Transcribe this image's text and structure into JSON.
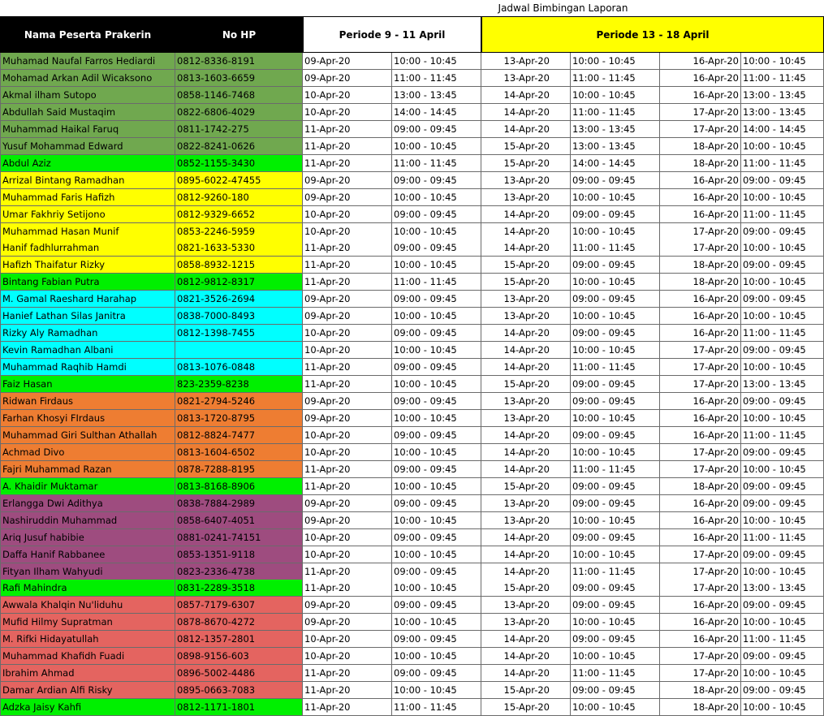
{
  "title": "Jadwal Bimbingan Laporan",
  "headers": {
    "name": "Nama Peserta Prakerin",
    "hp": "No HP",
    "period1": "Periode 9 - 11 April",
    "period2": "Periode 13 - 18 April"
  },
  "colors": {
    "olive": "#70a84f",
    "green": "#00f000",
    "yellow": "#ffff00",
    "cyan": "#00ffff",
    "orange": "#ee7d32",
    "purple": "#9e4c7f",
    "red": "#e46460"
  },
  "rows": [
    {
      "name": "Muhamad Naufal Farros Hediardi",
      "hp": "0812-8336-8191",
      "d1": "09-Apr-20",
      "t1": "10:00 - 10:45",
      "d2": "13-Apr-20",
      "t2": "10:00 - 10:45",
      "d3": "16-Apr-20",
      "t3": "10:00 - 10:45",
      "color": "olive"
    },
    {
      "name": "Mohamad Arkan Adil Wicaksono",
      "hp": "0813-1603-6659",
      "d1": "09-Apr-20",
      "t1": "11:00 - 11:45",
      "d2": "13-Apr-20",
      "t2": "11:00 - 11:45",
      "d3": "16-Apr-20",
      "t3": "11:00 - 11:45",
      "color": "olive"
    },
    {
      "name": "Akmal ilham Sutopo",
      "hp": "0858-1146-7468",
      "d1": "10-Apr-20",
      "t1": "13:00 - 13:45",
      "d2": "14-Apr-20",
      "t2": "10:00 - 10:45",
      "d3": "16-Apr-20",
      "t3": "13:00 - 13:45",
      "color": "olive"
    },
    {
      "name": "Abdullah Said Mustaqim",
      "hp": "0822-6806-4029",
      "d1": "10-Apr-20",
      "t1": "14:00 - 14:45",
      "d2": "14-Apr-20",
      "t2": "11:00 - 11:45",
      "d3": "17-Apr-20",
      "t3": "13:00 - 13:45",
      "color": "olive"
    },
    {
      "name": "Muhammad Haikal Faruq",
      "hp": "0811-1742-275",
      "d1": "11-Apr-20",
      "t1": "09:00 - 09:45",
      "d2": "14-Apr-20",
      "t2": "13:00 - 13:45",
      "d3": "17-Apr-20",
      "t3": "14:00 - 14:45",
      "color": "olive"
    },
    {
      "name": "Yusuf Mohammad Edward",
      "hp": "0822-8241-0626",
      "d1": "11-Apr-20",
      "t1": "10:00 - 10:45",
      "d2": "15-Apr-20",
      "t2": "13:00 - 13:45",
      "d3": "18-Apr-20",
      "t3": "10:00 - 10:45",
      "color": "olive"
    },
    {
      "name": "Abdul Aziz",
      "hp": "0852-1155-3430",
      "d1": "11-Apr-20",
      "t1": "11:00 - 11:45",
      "d2": "15-Apr-20",
      "t2": "14:00 - 14:45",
      "d3": "18-Apr-20",
      "t3": "11:00 - 11:45",
      "color": "green"
    },
    {
      "name": "Arrizal Bintang Ramadhan",
      "hp": "0895-6022-47455",
      "d1": "09-Apr-20",
      "t1": "09:00 - 09:45",
      "d2": "13-Apr-20",
      "t2": "09:00 - 09:45",
      "d3": "16-Apr-20",
      "t3": "09:00 - 09:45",
      "color": "yellow"
    },
    {
      "name": "Muhammad Faris Hafizh",
      "hp": "0812-9260-180",
      "d1": "09-Apr-20",
      "t1": "10:00 - 10:45",
      "d2": "13-Apr-20",
      "t2": "10:00 - 10:45",
      "d3": "16-Apr-20",
      "t3": "10:00 - 10:45",
      "color": "yellow"
    },
    {
      "name": "Umar Fakhriy Setijono",
      "hp": "0812-9329-6652",
      "d1": "10-Apr-20",
      "t1": "09:00 - 09:45",
      "d2": "14-Apr-20",
      "t2": "09:00 - 09:45",
      "d3": "16-Apr-20",
      "t3": "11:00 - 11:45",
      "color": "yellow"
    },
    {
      "name": "Muhammad Hasan Munif",
      "hp": "0853-2246-5959",
      "d1": "10-Apr-20",
      "t1": "10:00 - 10:45",
      "d2": "14-Apr-20",
      "t2": "10:00 - 10:45",
      "d3": "17-Apr-20",
      "t3": "09:00 - 09:45",
      "color": "yellow"
    },
    {
      "name": "Hanif fadhlurrahman",
      "hp": "0821-1633-5330",
      "d1": "11-Apr-20",
      "t1": "09:00 - 09:45",
      "d2": "14-Apr-20",
      "t2": "11:00 - 11:45",
      "d3": "17-Apr-20",
      "t3": "10:00 - 10:45",
      "color": "yellow"
    },
    {
      "name": "Hafizh Thaifatur Rizky",
      "hp": "0858-8932-1215",
      "d1": "11-Apr-20",
      "t1": "10:00 - 10:45",
      "d2": "15-Apr-20",
      "t2": "09:00 - 09:45",
      "d3": "18-Apr-20",
      "t3": "09:00 - 09:45",
      "color": "yellow"
    },
    {
      "name": "Bintang Fabian Putra",
      "hp": "0812-9812-8317",
      "d1": "11-Apr-20",
      "t1": "11:00 - 11:45",
      "d2": "15-Apr-20",
      "t2": "10:00 - 10:45",
      "d3": "18-Apr-20",
      "t3": "10:00 - 10:45",
      "color": "green"
    },
    {
      "name": "M. Gamal Raeshard Harahap",
      "hp": "0821-3526-2694",
      "d1": "09-Apr-20",
      "t1": "09:00 - 09:45",
      "d2": "13-Apr-20",
      "t2": "09:00 - 09:45",
      "d3": "16-Apr-20",
      "t3": "09:00 - 09:45",
      "color": "cyan"
    },
    {
      "name": "Hanief Lathan Silas Janitra",
      "hp": "0838-7000-8493",
      "d1": "09-Apr-20",
      "t1": "10:00 - 10:45",
      "d2": "13-Apr-20",
      "t2": "10:00 - 10:45",
      "d3": "16-Apr-20",
      "t3": "10:00 - 10:45",
      "color": "cyan"
    },
    {
      "name": "Rizky Aly Ramadhan",
      "hp": "0812-1398-7455",
      "d1": "10-Apr-20",
      "t1": "09:00 - 09:45",
      "d2": "14-Apr-20",
      "t2": "09:00 - 09:45",
      "d3": "16-Apr-20",
      "t3": "11:00 - 11:45",
      "color": "cyan"
    },
    {
      "name": "Kevin Ramadhan Albani",
      "hp": "",
      "d1": "10-Apr-20",
      "t1": "10:00 - 10:45",
      "d2": "14-Apr-20",
      "t2": "10:00 - 10:45",
      "d3": "17-Apr-20",
      "t3": "09:00 - 09:45",
      "color": "cyan"
    },
    {
      "name": "Muhammad Raqhib Hamdi",
      "hp": "0813-1076-0848",
      "d1": "11-Apr-20",
      "t1": "09:00 - 09:45",
      "d2": "14-Apr-20",
      "t2": "11:00 - 11:45",
      "d3": "17-Apr-20",
      "t3": "10:00 - 10:45",
      "color": "cyan"
    },
    {
      "name": "Faiz Hasan",
      "hp": "823-2359-8238",
      "d1": "11-Apr-20",
      "t1": "10:00 - 10:45",
      "d2": "15-Apr-20",
      "t2": "09:00 - 09:45",
      "d3": "17-Apr-20",
      "t3": "13:00 - 13:45",
      "color": "green"
    },
    {
      "name": "Ridwan Firdaus",
      "hp": "0821-2794-5246",
      "d1": "09-Apr-20",
      "t1": "09:00 - 09:45",
      "d2": "13-Apr-20",
      "t2": "09:00 - 09:45",
      "d3": "16-Apr-20",
      "t3": "09:00 - 09:45",
      "color": "orange"
    },
    {
      "name": "Farhan Khosyi FIrdaus",
      "hp": " 0813-1720-8795",
      "d1": "09-Apr-20",
      "t1": "10:00 - 10:45",
      "d2": "13-Apr-20",
      "t2": "10:00 - 10:45",
      "d3": "16-Apr-20",
      "t3": "10:00 - 10:45",
      "color": "orange"
    },
    {
      "name": "Muhammad Giri Sulthan Athallah",
      "hp": "0812-8824-7477",
      "d1": "10-Apr-20",
      "t1": "09:00 - 09:45",
      "d2": "14-Apr-20",
      "t2": "09:00 - 09:45",
      "d3": "16-Apr-20",
      "t3": "11:00 - 11:45",
      "color": "orange"
    },
    {
      "name": "Achmad Divo",
      "hp": "0813-1604-6502",
      "d1": "10-Apr-20",
      "t1": "10:00 - 10:45",
      "d2": "14-Apr-20",
      "t2": "10:00 - 10:45",
      "d3": "17-Apr-20",
      "t3": "09:00 - 09:45",
      "color": "orange"
    },
    {
      "name": "Fajri Muhammad Razan",
      "hp": "0878-7288-8195",
      "d1": "11-Apr-20",
      "t1": "09:00 - 09:45",
      "d2": "14-Apr-20",
      "t2": "11:00 - 11:45",
      "d3": "17-Apr-20",
      "t3": "10:00 - 10:45",
      "color": "orange"
    },
    {
      "name": "A. Khaidir Muktamar",
      "hp": "0813-8168-8906",
      "d1": "11-Apr-20",
      "t1": "10:00 - 10:45",
      "d2": "15-Apr-20",
      "t2": "09:00 - 09:45",
      "d3": "18-Apr-20",
      "t3": "09:00 - 09:45",
      "color": "green"
    },
    {
      "name": "Erlangga Dwi Adithya",
      "hp": "0838-7884-2989",
      "d1": "09-Apr-20",
      "t1": "09:00 - 09:45",
      "d2": "13-Apr-20",
      "t2": "09:00 - 09:45",
      "d3": "16-Apr-20",
      "t3": "09:00 - 09:45",
      "color": "purple"
    },
    {
      "name": "Nashiruddin Muhammad",
      "hp": "0858-6407-4051",
      "d1": "09-Apr-20",
      "t1": "10:00 - 10:45",
      "d2": "13-Apr-20",
      "t2": "10:00 - 10:45",
      "d3": "16-Apr-20",
      "t3": "10:00 - 10:45",
      "color": "purple"
    },
    {
      "name": "Ariq Jusuf habibie",
      "hp": "0881-0241-74151",
      "d1": "10-Apr-20",
      "t1": "09:00 - 09:45",
      "d2": "14-Apr-20",
      "t2": "09:00 - 09:45",
      "d3": "16-Apr-20",
      "t3": "11:00 - 11:45",
      "color": "purple"
    },
    {
      "name": "Daffa Hanif Rabbanee",
      "hp": "0853-1351-9118",
      "d1": "10-Apr-20",
      "t1": "10:00 - 10:45",
      "d2": "14-Apr-20",
      "t2": "10:00 - 10:45",
      "d3": "17-Apr-20",
      "t3": "09:00 - 09:45",
      "color": "purple"
    },
    {
      "name": "Fityan Ilham Wahyudi",
      "hp": "0823-2336-4738",
      "d1": "11-Apr-20",
      "t1": "09:00 - 09:45",
      "d2": "14-Apr-20",
      "t2": "11:00 - 11:45",
      "d3": "17-Apr-20",
      "t3": "10:00 - 10:45",
      "color": "purple"
    },
    {
      "name": "Rafi Mahindra",
      "hp": "0831-2289-3518",
      "d1": "11-Apr-20",
      "t1": "10:00 - 10:45",
      "d2": "15-Apr-20",
      "t2": "09:00 - 09:45",
      "d3": "17-Apr-20",
      "t3": "13:00 - 13:45",
      "color": "green"
    },
    {
      "name": "Awwala Khalqin Nu'liduhu",
      "hp": "0857-7179-6307",
      "d1": "09-Apr-20",
      "t1": "09:00 - 09:45",
      "d2": "13-Apr-20",
      "t2": "09:00 - 09:45",
      "d3": "16-Apr-20",
      "t3": "09:00 - 09:45",
      "color": "red"
    },
    {
      "name": "Mufid Hilmy Supratman",
      "hp": "0878-8670-4272",
      "d1": "09-Apr-20",
      "t1": "10:00 - 10:45",
      "d2": "13-Apr-20",
      "t2": "10:00 - 10:45",
      "d3": "16-Apr-20",
      "t3": "10:00 - 10:45",
      "color": "red"
    },
    {
      "name": "M. Rifki Hidayatullah",
      "hp": "0812-1357-2801",
      "d1": "10-Apr-20",
      "t1": "09:00 - 09:45",
      "d2": "14-Apr-20",
      "t2": "09:00 - 09:45",
      "d3": "16-Apr-20",
      "t3": "11:00 - 11:45",
      "color": "red"
    },
    {
      "name": "Muhammad Khafidh Fuadi",
      "hp": "0898-9156-603",
      "d1": "10-Apr-20",
      "t1": "10:00 - 10:45",
      "d2": "14-Apr-20",
      "t2": "10:00 - 10:45",
      "d3": "17-Apr-20",
      "t3": "09:00 - 09:45",
      "color": "red"
    },
    {
      "name": "Ibrahim Ahmad",
      "hp": "0896-5002-4486",
      "d1": "11-Apr-20",
      "t1": "09:00 - 09:45",
      "d2": "14-Apr-20",
      "t2": "11:00 - 11:45",
      "d3": "17-Apr-20",
      "t3": "10:00 - 10:45",
      "color": "red"
    },
    {
      "name": "Damar Ardian Alfi Risky",
      "hp": "0895-0663-7083",
      "d1": "11-Apr-20",
      "t1": "10:00 - 10:45",
      "d2": "15-Apr-20",
      "t2": "09:00 - 09:45",
      "d3": "18-Apr-20",
      "t3": "09:00 - 09:45",
      "color": "red"
    },
    {
      "name": "Adzka Jaisy Kahfi",
      "hp": "0812-1171-1801",
      "d1": "11-Apr-20",
      "t1": "11:00 - 11:45",
      "d2": "15-Apr-20",
      "t2": "10:00 - 10:45",
      "d3": "18-Apr-20",
      "t3": "10:00 - 10:45",
      "color": "green"
    }
  ]
}
